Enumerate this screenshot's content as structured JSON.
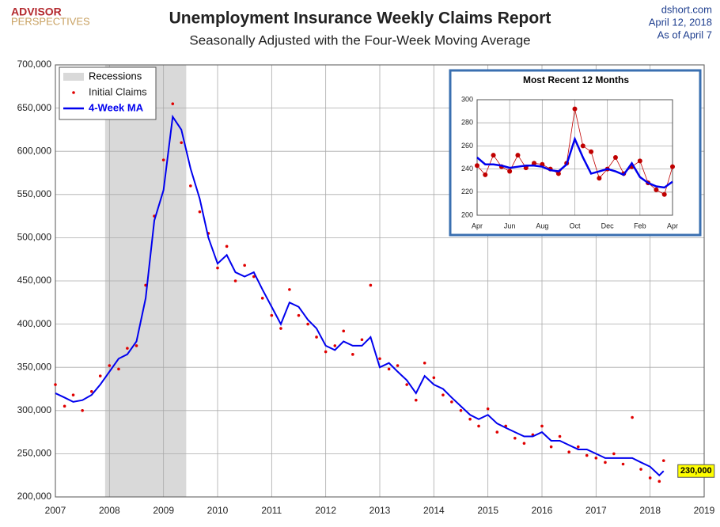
{
  "header": {
    "logo_top": "ADVISOR",
    "logo_bottom": "PERSPECTIVES",
    "source": "dshort.com",
    "date": "April 12, 2018",
    "as_of": "As of April 7"
  },
  "chart_data": [
    {
      "type": "line",
      "title": "Unemployment Insurance Weekly Claims Report",
      "subtitle": "Seasonally Adjusted with the Four-Week Moving Average",
      "x": [
        2007.0,
        2007.17,
        2007.33,
        2007.5,
        2007.67,
        2007.83,
        2008.0,
        2008.17,
        2008.33,
        2008.5,
        2008.67,
        2008.83,
        2009.0,
        2009.17,
        2009.33,
        2009.5,
        2009.67,
        2009.83,
        2010.0,
        2010.17,
        2010.33,
        2010.5,
        2010.67,
        2010.83,
        2011.0,
        2011.17,
        2011.33,
        2011.5,
        2011.67,
        2011.83,
        2012.0,
        2012.17,
        2012.33,
        2012.5,
        2012.67,
        2012.83,
        2013.0,
        2013.17,
        2013.33,
        2013.5,
        2013.67,
        2013.83,
        2014.0,
        2014.17,
        2014.33,
        2014.5,
        2014.67,
        2014.83,
        2015.0,
        2015.17,
        2015.33,
        2015.5,
        2015.67,
        2015.83,
        2016.0,
        2016.17,
        2016.33,
        2016.5,
        2016.67,
        2016.83,
        2017.0,
        2017.17,
        2017.33,
        2017.5,
        2017.67,
        2017.83,
        2018.0,
        2018.17,
        2018.25
      ],
      "series": [
        {
          "name": "Initial Claims",
          "color": "#e00000",
          "mode": "markers",
          "values": [
            330000,
            305000,
            318000,
            300000,
            322000,
            340000,
            352000,
            348000,
            372000,
            375000,
            445000,
            525000,
            590000,
            655000,
            610000,
            560000,
            530000,
            505000,
            465000,
            490000,
            450000,
            468000,
            455000,
            430000,
            410000,
            395000,
            440000,
            410000,
            400000,
            385000,
            368000,
            375000,
            392000,
            365000,
            382000,
            445000,
            360000,
            348000,
            352000,
            330000,
            312000,
            355000,
            338000,
            318000,
            310000,
            300000,
            290000,
            282000,
            302000,
            275000,
            282000,
            268000,
            262000,
            272000,
            282000,
            258000,
            270000,
            252000,
            258000,
            248000,
            245000,
            240000,
            250000,
            238000,
            292000,
            232000,
            222000,
            218000,
            242000
          ]
        },
        {
          "name": "4-Week MA",
          "color": "#0000ee",
          "mode": "line",
          "values": [
            320000,
            315000,
            310000,
            312000,
            318000,
            330000,
            345000,
            360000,
            365000,
            380000,
            430000,
            520000,
            555000,
            640000,
            625000,
            580000,
            545000,
            500000,
            470000,
            480000,
            460000,
            455000,
            460000,
            440000,
            420000,
            400000,
            425000,
            420000,
            405000,
            395000,
            375000,
            370000,
            380000,
            375000,
            375000,
            385000,
            350000,
            355000,
            345000,
            335000,
            320000,
            340000,
            330000,
            325000,
            315000,
            305000,
            295000,
            290000,
            295000,
            285000,
            280000,
            275000,
            270000,
            270000,
            275000,
            265000,
            265000,
            260000,
            255000,
            255000,
            250000,
            245000,
            245000,
            245000,
            245000,
            240000,
            235000,
            225000,
            230000
          ]
        }
      ],
      "shaded_regions": [
        {
          "name": "Recessions",
          "color": "#d9d9d9",
          "x": [
            2007.92,
            2009.42
          ]
        }
      ],
      "annotations": [
        {
          "text": "230,000",
          "x": 2018.25,
          "y": 230000
        }
      ],
      "xlim": [
        2007,
        2019
      ],
      "xticks": [
        2007,
        2008,
        2009,
        2010,
        2011,
        2012,
        2013,
        2014,
        2015,
        2016,
        2017,
        2018,
        2019
      ],
      "ylim": [
        200000,
        700000
      ],
      "yticks": [
        {
          "value": 200000,
          "label": "200,000"
        },
        {
          "value": 250000,
          "label": "250,000"
        },
        {
          "value": 300000,
          "label": "300,000"
        },
        {
          "value": 350000,
          "label": "350,000"
        },
        {
          "value": 400000,
          "label": "400,000"
        },
        {
          "value": 450000,
          "label": "450,000"
        },
        {
          "value": 500000,
          "label": "500,000"
        },
        {
          "value": 550000,
          "label": "550,000"
        },
        {
          "value": 600000,
          "label": "600,000"
        },
        {
          "value": 650000,
          "label": "650,000"
        },
        {
          "value": 700000,
          "label": "700,000"
        }
      ],
      "grid": true,
      "legend": "top-left"
    },
    {
      "type": "line",
      "title": "Most Recent 12 Months",
      "categories": [
        "Apr",
        null,
        null,
        null,
        "Jun",
        null,
        null,
        null,
        "Aug",
        null,
        null,
        null,
        "Oct",
        null,
        null,
        null,
        "Dec",
        null,
        null,
        null,
        "Feb",
        null,
        null,
        null,
        "Apr"
      ],
      "series": [
        {
          "color": "#c00000",
          "mode": "markers-line",
          "values": [
            243,
            235,
            252,
            242,
            238,
            252,
            241,
            245,
            244,
            240,
            236,
            245,
            292,
            260,
            255,
            232,
            240,
            250,
            236,
            242,
            247,
            228,
            222,
            218,
            242
          ]
        },
        {
          "color": "#0000ee",
          "mode": "line",
          "values": [
            250,
            244,
            244,
            243,
            241,
            242,
            243,
            243,
            242,
            239,
            238,
            244,
            266,
            250,
            236,
            238,
            240,
            238,
            235,
            245,
            233,
            228,
            225,
            224,
            229
          ]
        }
      ],
      "ylim": [
        200,
        300
      ],
      "yticks": [
        200,
        220,
        240,
        260,
        280,
        300
      ],
      "grid": true
    }
  ]
}
